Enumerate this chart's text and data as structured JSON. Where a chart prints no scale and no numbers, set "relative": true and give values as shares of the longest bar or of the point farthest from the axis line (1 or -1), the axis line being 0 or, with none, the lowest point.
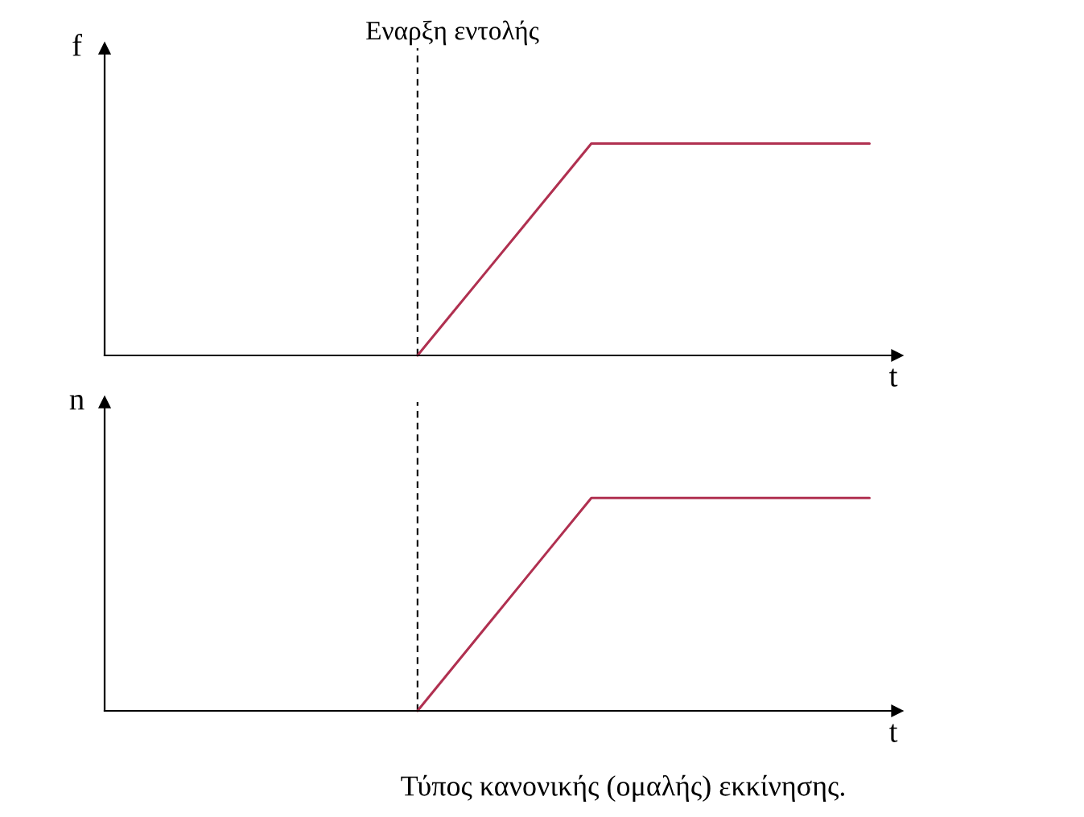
{
  "chart_data": [
    {
      "type": "line",
      "relative": true,
      "ylabel": "f",
      "xlabel": "t",
      "categories": [
        null,
        null,
        null,
        null,
        null,
        null,
        null,
        null,
        null,
        null,
        null,
        null,
        null,
        null,
        null,
        null,
        null,
        null,
        null,
        null,
        null,
        null,
        null
      ],
      "series": [
        {
          "color": "#b03050",
          "values": [
            null,
            null,
            null,
            null,
            null,
            null,
            null,
            null,
            null,
            0,
            0.2,
            0.4,
            0.6,
            0.8,
            1,
            1,
            1,
            1,
            1,
            1,
            1,
            1,
            1
          ]
        }
      ],
      "annotations": [
        "Εναρξη εντολής"
      ],
      "tick_labels": false,
      "legend": false,
      "marker": "none",
      "line_style": "solid"
    },
    {
      "type": "line",
      "relative": true,
      "ylabel": "n",
      "xlabel": "t",
      "categories": [
        null,
        null,
        null,
        null,
        null,
        null,
        null,
        null,
        null,
        null,
        null,
        null,
        null,
        null,
        null,
        null,
        null,
        null,
        null,
        null,
        null,
        null,
        null
      ],
      "series": [
        {
          "color": "#b03050",
          "values": [
            null,
            null,
            null,
            null,
            null,
            null,
            null,
            null,
            null,
            0,
            0.2,
            0.4,
            0.6,
            0.8,
            1,
            1,
            1,
            1,
            1,
            1,
            1,
            1,
            1
          ]
        }
      ],
      "annotations": [
        "Τύπος κανονικής (ομαλής) εκκίνησης."
      ],
      "tick_labels": false,
      "legend": false,
      "marker": "none",
      "line_style": "solid"
    }
  ]
}
